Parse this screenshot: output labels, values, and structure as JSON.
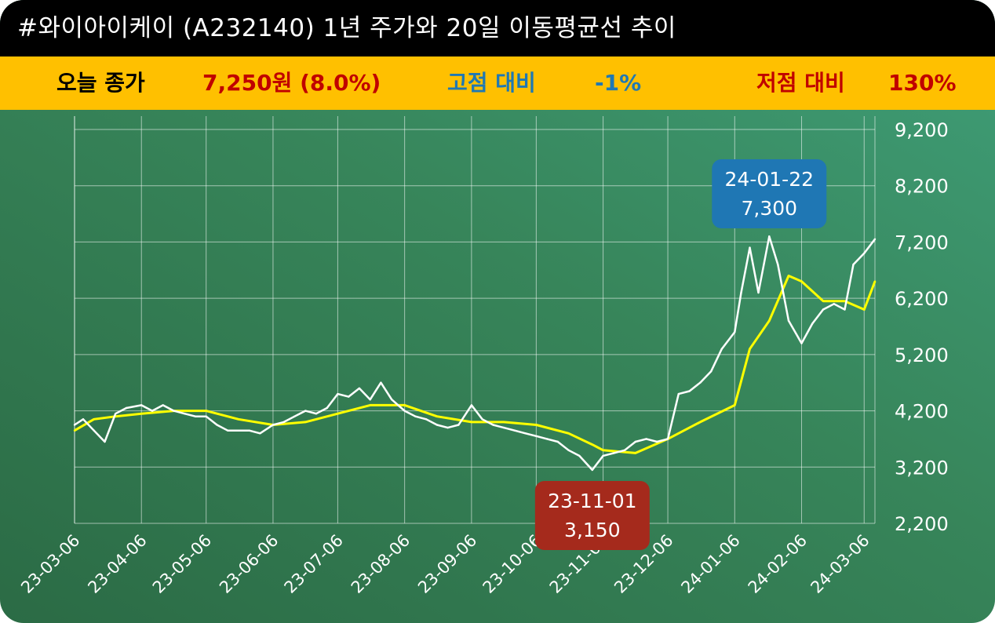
{
  "header": {
    "title": "#와이아이케이 (A232140) 1년 주가와 20일 이동평균선 추이"
  },
  "stats": {
    "close_label": "오늘 종가",
    "close_value": "7,250원 (8.0%)",
    "high_label": "고점 대비",
    "high_value": "-1%",
    "low_label": "저점 대비",
    "low_value": "130%"
  },
  "colors": {
    "title_bg": "#000000",
    "stats_bg": "#ffc000",
    "close_value": "#c00000",
    "high": "#1f78b4",
    "low": "#c00000",
    "price_line": "#ffffff",
    "ma_line": "#ffff00",
    "high_callout": "#1f77b4",
    "low_callout": "#a52a1c"
  },
  "chart_data": {
    "type": "line",
    "x_tick_labels": [
      "23-03-06",
      "23-04-06",
      "23-05-06",
      "23-06-06",
      "23-07-06",
      "23-08-06",
      "23-09-06",
      "23-10-06",
      "23-11-06",
      "23-12-06",
      "24-01-06",
      "24-02-06",
      "24-03-06"
    ],
    "y_ticks": [
      2200,
      3200,
      4200,
      5200,
      6200,
      7200,
      8200,
      9200
    ],
    "y_tick_labels": [
      "2,200",
      "3,200",
      "4,200",
      "5,200",
      "6,200",
      "7,200",
      "8,200",
      "9,200"
    ],
    "ylim": [
      2200,
      9200
    ],
    "grid": true,
    "series": [
      {
        "key": "price",
        "points": [
          [
            "23-03-06",
            3950
          ],
          [
            "23-03-10",
            4050
          ],
          [
            "23-03-15",
            3850
          ],
          [
            "23-03-20",
            3650
          ],
          [
            "23-03-25",
            4150
          ],
          [
            "23-03-30",
            4250
          ],
          [
            "23-04-06",
            4300
          ],
          [
            "23-04-11",
            4200
          ],
          [
            "23-04-16",
            4300
          ],
          [
            "23-04-21",
            4200
          ],
          [
            "23-04-26",
            4150
          ],
          [
            "23-05-01",
            4100
          ],
          [
            "23-05-06",
            4100
          ],
          [
            "23-05-11",
            3950
          ],
          [
            "23-05-16",
            3850
          ],
          [
            "23-05-21",
            3850
          ],
          [
            "23-05-26",
            3850
          ],
          [
            "23-05-31",
            3800
          ],
          [
            "23-06-06",
            3950
          ],
          [
            "23-06-11",
            4000
          ],
          [
            "23-06-16",
            4100
          ],
          [
            "23-06-21",
            4200
          ],
          [
            "23-06-26",
            4150
          ],
          [
            "23-07-01",
            4250
          ],
          [
            "23-07-06",
            4500
          ],
          [
            "23-07-11",
            4450
          ],
          [
            "23-07-16",
            4600
          ],
          [
            "23-07-21",
            4400
          ],
          [
            "23-07-26",
            4700
          ],
          [
            "23-07-31",
            4400
          ],
          [
            "23-08-06",
            4200
          ],
          [
            "23-08-11",
            4100
          ],
          [
            "23-08-16",
            4050
          ],
          [
            "23-08-21",
            3950
          ],
          [
            "23-08-26",
            3900
          ],
          [
            "23-08-31",
            3950
          ],
          [
            "23-09-06",
            4300
          ],
          [
            "23-09-11",
            4050
          ],
          [
            "23-09-16",
            3950
          ],
          [
            "23-09-21",
            3900
          ],
          [
            "23-09-26",
            3850
          ],
          [
            "23-10-01",
            3800
          ],
          [
            "23-10-06",
            3750
          ],
          [
            "23-10-11",
            3700
          ],
          [
            "23-10-16",
            3650
          ],
          [
            "23-10-21",
            3500
          ],
          [
            "23-10-26",
            3400
          ],
          [
            "23-11-01",
            3150
          ],
          [
            "23-11-06",
            3400
          ],
          [
            "23-11-11",
            3450
          ],
          [
            "23-11-16",
            3500
          ],
          [
            "23-11-21",
            3650
          ],
          [
            "23-11-26",
            3700
          ],
          [
            "23-12-01",
            3650
          ],
          [
            "23-12-06",
            3700
          ],
          [
            "23-12-11",
            4500
          ],
          [
            "23-12-16",
            4550
          ],
          [
            "23-12-21",
            4700
          ],
          [
            "23-12-26",
            4900
          ],
          [
            "23-12-31",
            5300
          ],
          [
            "24-01-06",
            5600
          ],
          [
            "24-01-09",
            6300
          ],
          [
            "24-01-13",
            7100
          ],
          [
            "24-01-17",
            6300
          ],
          [
            "24-01-22",
            7300
          ],
          [
            "24-01-26",
            6800
          ],
          [
            "24-01-31",
            5800
          ],
          [
            "24-02-06",
            5400
          ],
          [
            "24-02-11",
            5750
          ],
          [
            "24-02-16",
            6000
          ],
          [
            "24-02-21",
            6100
          ],
          [
            "24-02-26",
            6000
          ],
          [
            "24-03-01",
            6800
          ],
          [
            "24-03-06",
            7000
          ],
          [
            "24-03-11",
            7250
          ]
        ]
      },
      {
        "key": "ma20",
        "points": [
          [
            "23-03-06",
            3850
          ],
          [
            "23-03-15",
            4050
          ],
          [
            "23-03-25",
            4100
          ],
          [
            "23-04-06",
            4150
          ],
          [
            "23-04-21",
            4200
          ],
          [
            "23-05-06",
            4200
          ],
          [
            "23-05-21",
            4050
          ],
          [
            "23-06-06",
            3950
          ],
          [
            "23-06-21",
            4000
          ],
          [
            "23-07-06",
            4150
          ],
          [
            "23-07-21",
            4300
          ],
          [
            "23-08-06",
            4300
          ],
          [
            "23-08-21",
            4100
          ],
          [
            "23-09-06",
            4000
          ],
          [
            "23-09-21",
            4000
          ],
          [
            "23-10-06",
            3950
          ],
          [
            "23-10-21",
            3800
          ],
          [
            "23-11-01",
            3600
          ],
          [
            "23-11-06",
            3500
          ],
          [
            "23-11-21",
            3450
          ],
          [
            "23-12-06",
            3700
          ],
          [
            "23-12-21",
            4000
          ],
          [
            "24-01-06",
            4300
          ],
          [
            "24-01-13",
            5300
          ],
          [
            "24-01-22",
            5800
          ],
          [
            "24-01-31",
            6600
          ],
          [
            "24-02-06",
            6500
          ],
          [
            "24-02-16",
            6150
          ],
          [
            "24-02-26",
            6150
          ],
          [
            "24-03-06",
            6000
          ],
          [
            "24-03-11",
            6500
          ]
        ]
      }
    ],
    "annotations": [
      {
        "key": "high",
        "date": "24-01-22",
        "value": "7,300"
      },
      {
        "key": "low",
        "date": "23-11-01",
        "value": "3,150"
      }
    ]
  }
}
